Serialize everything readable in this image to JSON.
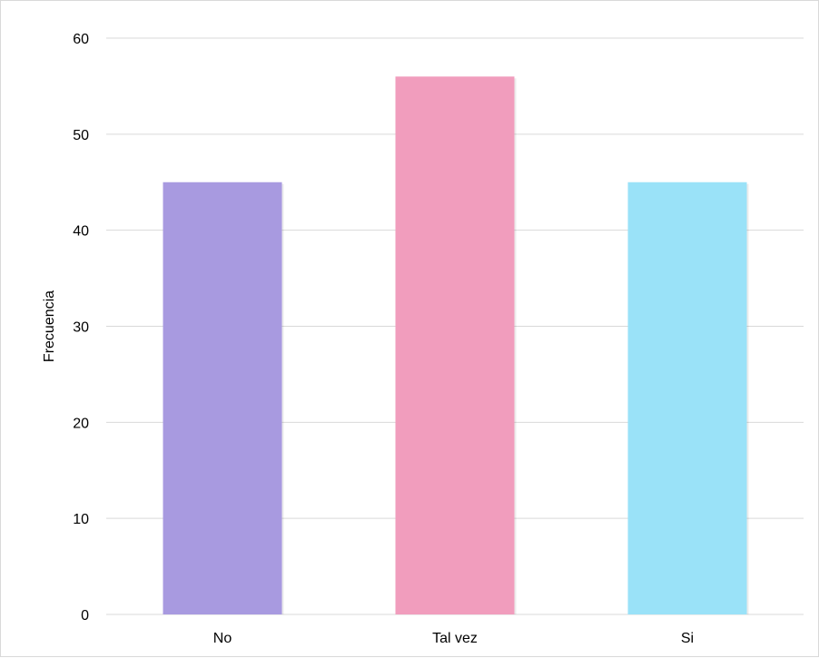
{
  "chart_data": {
    "type": "bar",
    "title": "",
    "xlabel": "",
    "ylabel": "Frecuencia",
    "ylim": [
      0,
      60
    ],
    "y_ticks": [
      0,
      10,
      20,
      30,
      40,
      50,
      60
    ],
    "grid": true,
    "legend": "none",
    "categories": [
      "No",
      "Tal vez",
      "Si"
    ],
    "values": [
      45,
      56,
      45
    ],
    "colors": [
      "#a89ae0",
      "#f19dbd",
      "#9ae2f8"
    ],
    "gridline_color": "#d9d9d9"
  }
}
